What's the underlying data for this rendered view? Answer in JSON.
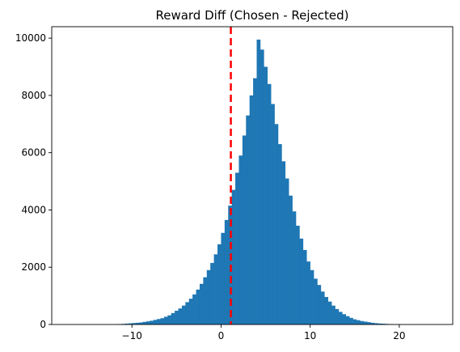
{
  "chart_data": {
    "type": "bar",
    "title": "Reward Diff (Chosen - Rejected)",
    "xlabel": "",
    "ylabel": "",
    "xlim": [
      -19,
      26
    ],
    "ylim": [
      0,
      10400
    ],
    "xticks": [
      -10,
      0,
      10,
      20
    ],
    "yticks": [
      0,
      2000,
      4000,
      6000,
      8000,
      10000
    ],
    "bin_width": 0.4,
    "bin_start": -16.0,
    "counts": [
      0,
      0,
      0,
      0,
      0,
      0,
      0,
      0,
      0,
      5,
      10,
      15,
      20,
      30,
      40,
      50,
      60,
      70,
      90,
      110,
      130,
      160,
      190,
      220,
      270,
      320,
      400,
      480,
      560,
      660,
      780,
      900,
      1050,
      1220,
      1420,
      1650,
      1900,
      2150,
      2450,
      2800,
      3200,
      3650,
      4150,
      4700,
      5300,
      5900,
      6600,
      7300,
      8000,
      8600,
      9950,
      9600,
      9000,
      8400,
      7700,
      7000,
      6300,
      5700,
      5100,
      4500,
      3950,
      3450,
      3000,
      2600,
      2200,
      1900,
      1600,
      1380,
      1150,
      960,
      800,
      660,
      540,
      440,
      360,
      290,
      230,
      180,
      150,
      120,
      100,
      80,
      60,
      45,
      35,
      28,
      20,
      15,
      10,
      8,
      6,
      4,
      3,
      2,
      1,
      1,
      0,
      0,
      0,
      0,
      0,
      0,
      0,
      0,
      0,
      0,
      0,
      0,
      0,
      0,
      0,
      0,
      0,
      0,
      0,
      0,
      0,
      0,
      0,
      0,
      0,
      0,
      0,
      0,
      0,
      0,
      0,
      0,
      0,
      0
    ],
    "mean_line": {
      "x": 1.1,
      "color": "#ff0000",
      "style": "dashed"
    },
    "bar_color": "#1f77b4",
    "grid": false,
    "legend": "none"
  }
}
